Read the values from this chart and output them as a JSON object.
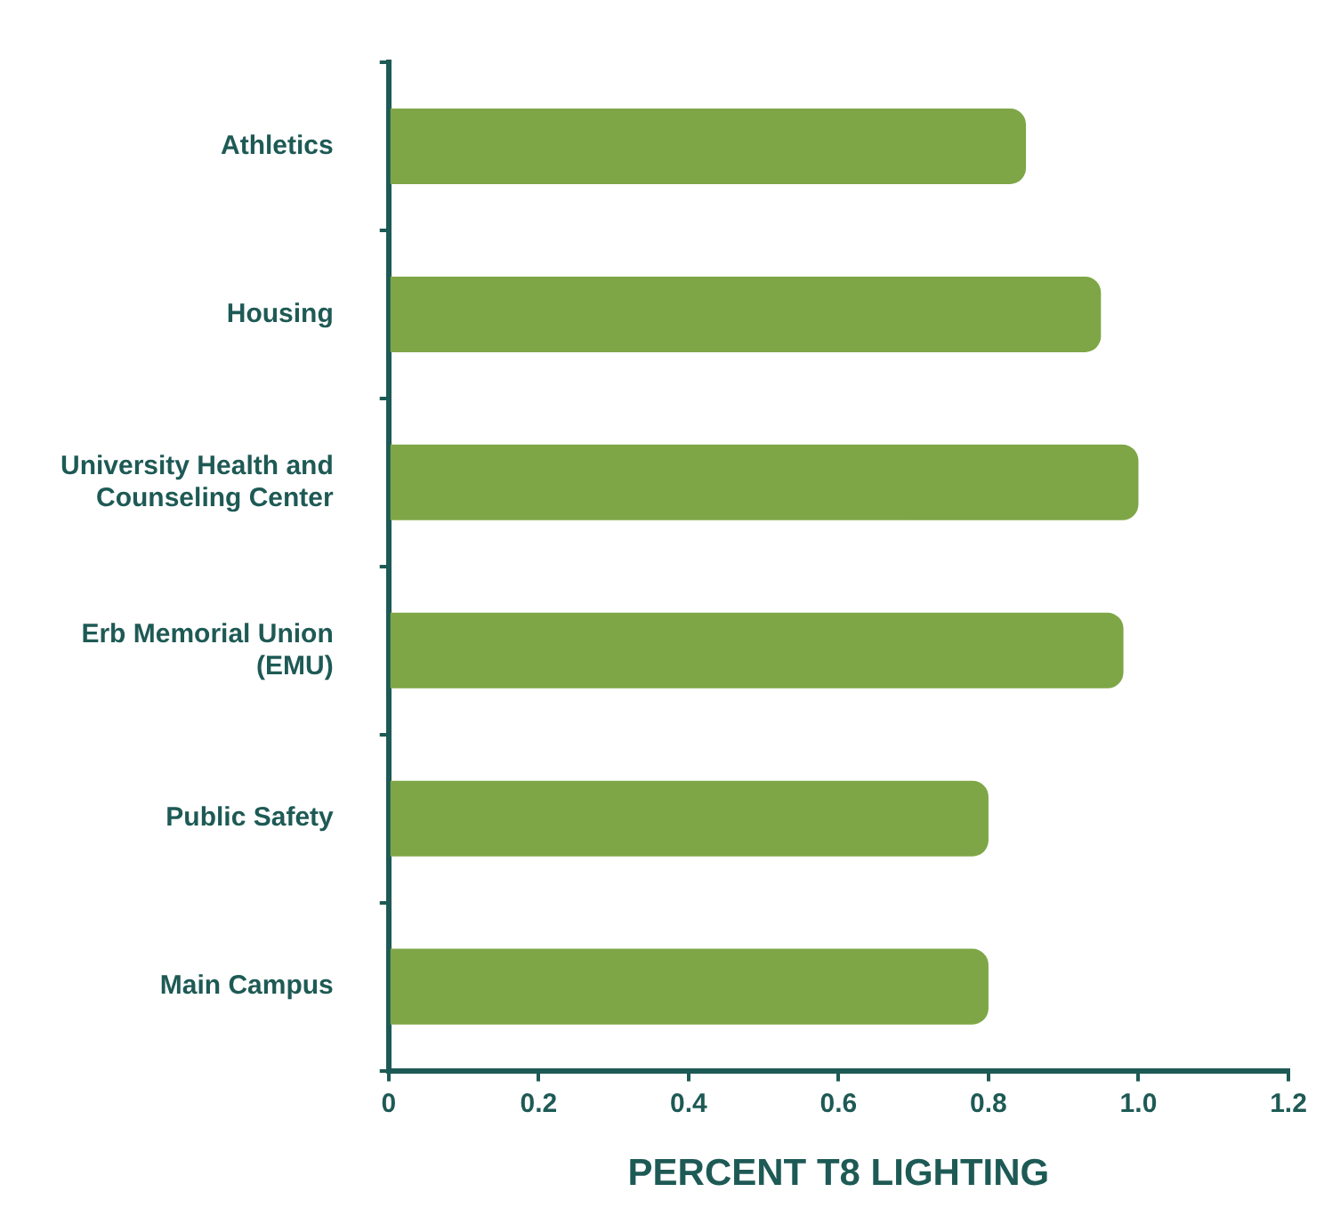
{
  "chart_data": {
    "type": "bar",
    "orientation": "horizontal",
    "xlabel": "PERCENT T8 LIGHTING",
    "categories": [
      "Athletics",
      "Housing",
      "University Health and Counseling Center",
      "Erb Memorial Union (EMU)",
      "Public Safety",
      "Main Campus"
    ],
    "values": [
      0.85,
      0.95,
      1.0,
      0.98,
      0.8,
      0.8
    ],
    "color": "#7ea646",
    "xlim": [
      0,
      1.2
    ],
    "xticks": [
      0,
      0.2,
      0.4,
      0.6,
      0.8,
      {
        "value": 1,
        "label": "1.0"
      },
      1.2
    ],
    "grid": false,
    "legend": false
  }
}
